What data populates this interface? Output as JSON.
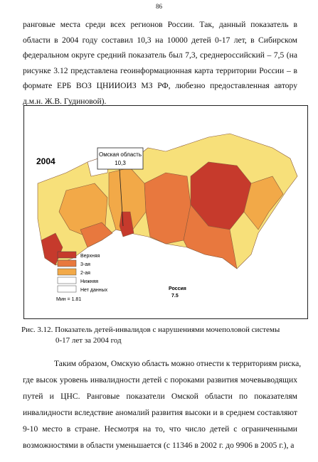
{
  "page_number": "86",
  "paragraph_1": [
    "ранговые места среди всех регионов России. Так, данный показатель в",
    "области в 2004 году составил 10,3 на 10000 детей 0-17 лет, в Сибирском",
    "федеральном округе средний показатель был 7,3, среднероссийский – 7,5 (на",
    "рисунке 3.12 представлена геоинформационная карта территории России – в",
    "формате ЕРБ ВОЗ ЦНИИОИЗ МЗ РФ, любезно предоставленная автору",
    "д.м.н. Ж.В. Гудиновой)."
  ],
  "figure": {
    "year": "2004",
    "callout": [
      "Омская область",
      "10,3"
    ],
    "legend": [
      "Верхняя",
      "3-ая",
      "2-ая",
      "Нижняя",
      "Нет данных"
    ],
    "min": "Мин = 1.81",
    "russia": [
      "Россия",
      "7.5"
    ]
  },
  "caption": [
    "Рис. 3.12. Показатель детей-инвалидов с нарушениями мочеполовой системы",
    "0-17 лет за 2004 год"
  ],
  "paragraph_2": [
    "Таким образом, Омскую область можно отнести к территориям риска,",
    "где высок уровень инвалидности детей с пороками развития мочевыводящих",
    "путей и ЦНС. Ранговые показатели Омской области по показателям",
    "инвалидности вследствие аномалий развития высоки и в среднем составляют",
    "9-10 место в стране. Несмотря на то, что число детей с ограниченными",
    "возможностями в области уменьшается (с 11346 в 2002 г. до 9906 в 2005 г.), а"
  ]
}
